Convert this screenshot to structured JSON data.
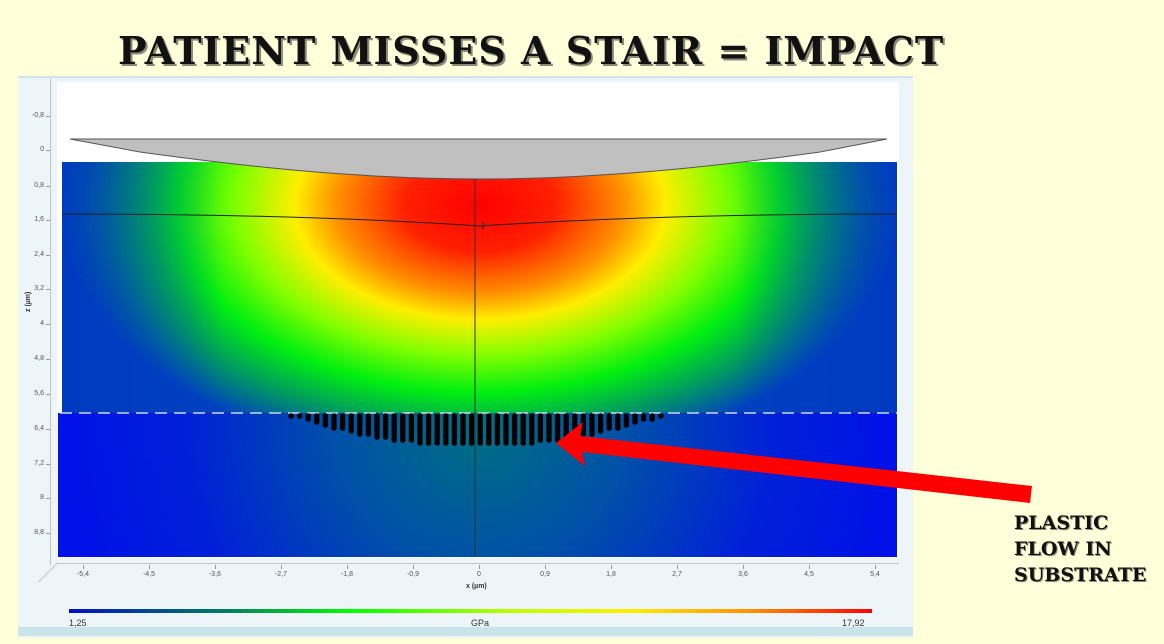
{
  "title": "PATIENT MISSES A STAIR = IMPACT",
  "annotation": {
    "lines": [
      "PLASTIC",
      "FLOW IN",
      "SUBSTRATE"
    ],
    "arrow_color": "#ff0000",
    "arrow_icon": "arrow-left-icon"
  },
  "chart_data": {
    "type": "heatmap",
    "title": "",
    "xlabel": "x (µm)",
    "ylabel": "z (µm)",
    "x_ticks": [
      "-5,4",
      "-4,5",
      "-3,6",
      "-2,7",
      "-1,8",
      "-0,9",
      "0",
      "0,9",
      "1,8",
      "2,7",
      "3,6",
      "4,5",
      "5,4"
    ],
    "y_ticks": [
      "-0,8",
      "0",
      "0,8",
      "1,6",
      "2,4",
      "3,2",
      "4",
      "4,8",
      "5,6",
      "6,4",
      "7,2",
      "8",
      "8,8"
    ],
    "xlim": [
      -5.8,
      5.8
    ],
    "ylim": [
      9.2,
      -1.2
    ],
    "colorbar": {
      "min_label": "1,25",
      "max_label": "17,92",
      "unit": "GPa",
      "min": 1.25,
      "max": 17.92,
      "colors": [
        "#0000e0",
        "#00a000",
        "#00ff00",
        "#ffff00",
        "#ff8000",
        "#ff0000"
      ]
    },
    "regions": [
      {
        "name": "indenter",
        "color": "#c0c0c0",
        "z_top": 0,
        "z_tip": 0.75
      },
      {
        "name": "coating",
        "z_range": [
          0.3,
          6.0
        ],
        "peak_stress_center": [
          0,
          1.7
        ],
        "peak_color": "#ff0000"
      },
      {
        "name": "coating-interface-line",
        "z": 1.6
      },
      {
        "name": "substrate",
        "z_range": [
          6.0,
          9.2
        ],
        "color": "#0010e0"
      },
      {
        "name": "plastic-zone",
        "x_range": [
          -2.5,
          2.5
        ],
        "max_depth_z": 7.0,
        "marker": "black dots"
      }
    ],
    "legend_position": "bottom"
  }
}
